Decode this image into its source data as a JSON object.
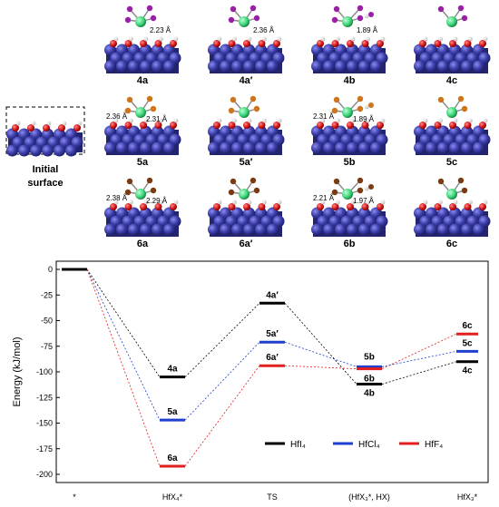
{
  "top": {
    "initial_label_line1": "Initial",
    "initial_label_line2": "surface",
    "panels": [
      {
        "label": "4a",
        "halogen": "#9b1ea6",
        "dist": [
          "2.23 Å"
        ]
      },
      {
        "label": "4a′",
        "halogen": "#9b1ea6",
        "dist": [
          "2.36 Å"
        ]
      },
      {
        "label": "4b",
        "halogen": "#9b1ea6",
        "dist": [
          "1.89 Å"
        ]
      },
      {
        "label": "4c",
        "halogen": "#9b1ea6",
        "dist": []
      },
      {
        "label": "5a",
        "halogen": "#cf7418",
        "dist": [
          "2.36 Å",
          "2.31 Å"
        ]
      },
      {
        "label": "5a′",
        "halogen": "#cf7418",
        "dist": []
      },
      {
        "label": "5b",
        "halogen": "#cf7418",
        "dist": [
          "2.31 Å",
          "1.89 Å"
        ]
      },
      {
        "label": "5c",
        "halogen": "#cf7418",
        "dist": []
      },
      {
        "label": "6a",
        "halogen": "#7a3a12",
        "dist": [
          "2.38 Å",
          "2.29 Å"
        ]
      },
      {
        "label": "6a′",
        "halogen": "#7a3a12",
        "dist": []
      },
      {
        "label": "6b",
        "halogen": "#7a3a12",
        "dist": [
          "2.21 Å",
          "1.97 Å"
        ]
      },
      {
        "label": "6c",
        "halogen": "#7a3a12",
        "dist": []
      }
    ]
  },
  "chart_data": {
    "type": "line",
    "ylabel": "Energy (kJ/mol)",
    "ylim": [
      -200,
      0
    ],
    "yticks": [
      0,
      -25,
      -50,
      -75,
      -100,
      -125,
      -150,
      -175,
      -200
    ],
    "x_categories": [
      "*",
      "HfX₄*",
      "TS",
      "(HfX₃*, HX)",
      "HfX₃*"
    ],
    "series": [
      {
        "name": "HfI₄",
        "color": "#000000",
        "values": [
          0,
          -105,
          -33,
          -112,
          -90
        ],
        "labels": [
          "",
          "4a",
          "4a′",
          "4b",
          "4c"
        ]
      },
      {
        "name": "HfCl₄",
        "color": "#1f3fcf",
        "values": [
          0,
          -147,
          -71,
          -95,
          -80
        ],
        "labels": [
          "",
          "5a",
          "5a′",
          "5b",
          "5c"
        ]
      },
      {
        "name": "HfF₄",
        "color": "#e11f1f",
        "values": [
          0,
          -192,
          -94,
          -97,
          -63
        ],
        "labels": [
          "",
          "6a",
          "6a′",
          "6b",
          "6c"
        ]
      }
    ],
    "grid": false,
    "legend_position": "bottom-right"
  },
  "colors": {
    "slab": "#3b3da8",
    "slab_dark": "#2b2d85",
    "oxygen": "#d41414",
    "hydrogen": "#ffffff",
    "hafnium": "#3ed67a"
  }
}
